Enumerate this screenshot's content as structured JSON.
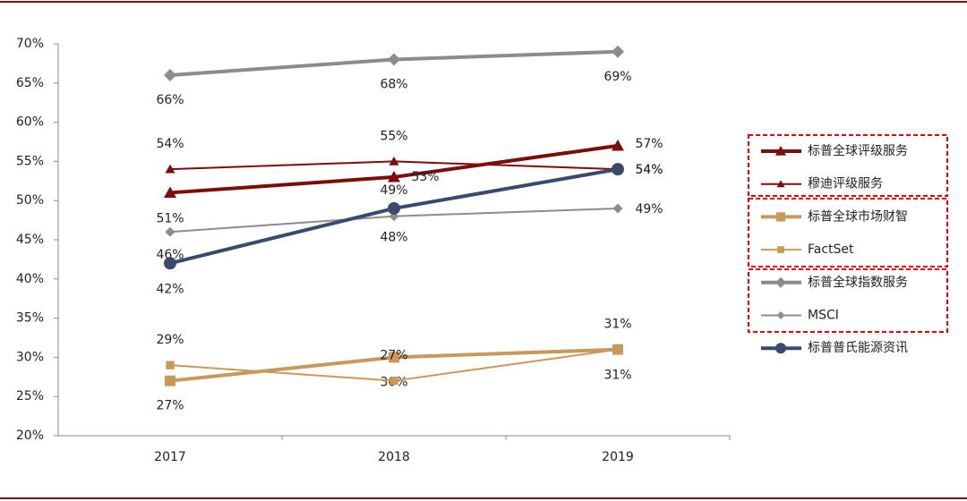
{
  "chart_data": {
    "type": "line",
    "categories": [
      "2017",
      "2018",
      "2019"
    ],
    "ylim": [
      20,
      70
    ],
    "yticks": [
      {
        "value": 20,
        "label": "20%"
      },
      {
        "value": 25,
        "label": "25%"
      },
      {
        "value": 30,
        "label": "30%"
      },
      {
        "value": 35,
        "label": "35%"
      },
      {
        "value": 40,
        "label": "40%"
      },
      {
        "value": 45,
        "label": "45%"
      },
      {
        "value": 50,
        "label": "50%"
      },
      {
        "value": 55,
        "label": "55%"
      },
      {
        "value": 60,
        "label": "60%"
      },
      {
        "value": 65,
        "label": "65%"
      },
      {
        "value": 70,
        "label": "70%"
      }
    ],
    "series": [
      {
        "name": "标普全球评级服务",
        "color": "#7b0d0d",
        "line_width": 4,
        "marker": "triangle",
        "values": [
          51,
          53,
          57
        ],
        "value_labels": [
          "51%",
          "53%",
          "57%"
        ]
      },
      {
        "name": "穆迪评级服务",
        "color": "#7b0d0d",
        "line_width": 2,
        "marker": "triangle",
        "values": [
          54,
          55,
          54
        ],
        "value_labels": [
          "54%",
          "55%",
          "54%"
        ]
      },
      {
        "name": "标普全球市场财智",
        "color": "#c8995a",
        "line_width": 4,
        "marker": "square",
        "values": [
          27,
          30,
          31
        ],
        "value_labels": [
          "27%",
          "30%",
          "31%"
        ]
      },
      {
        "name": "FactSet",
        "color": "#c8995a",
        "line_width": 2,
        "marker": "square",
        "values": [
          29,
          27,
          31
        ],
        "value_labels": [
          "29%",
          "27%",
          "31%"
        ]
      },
      {
        "name": "标普全球指数服务",
        "color": "#8c8c8c",
        "line_width": 4,
        "marker": "diamond",
        "values": [
          66,
          68,
          69
        ],
        "value_labels": [
          "66%",
          "68%",
          "69%"
        ]
      },
      {
        "name": "MSCI",
        "color": "#8c8c8c",
        "line_width": 2,
        "marker": "diamond",
        "values": [
          46,
          48,
          49
        ],
        "value_labels": [
          "46%",
          "48%",
          "49%"
        ]
      },
      {
        "name": "标普普氏能源资讯",
        "color": "#3a4a6e",
        "line_width": 4,
        "marker": "circle",
        "values": [
          42,
          49,
          54
        ],
        "value_labels": [
          "42%",
          "49%",
          "54%"
        ]
      }
    ]
  }
}
